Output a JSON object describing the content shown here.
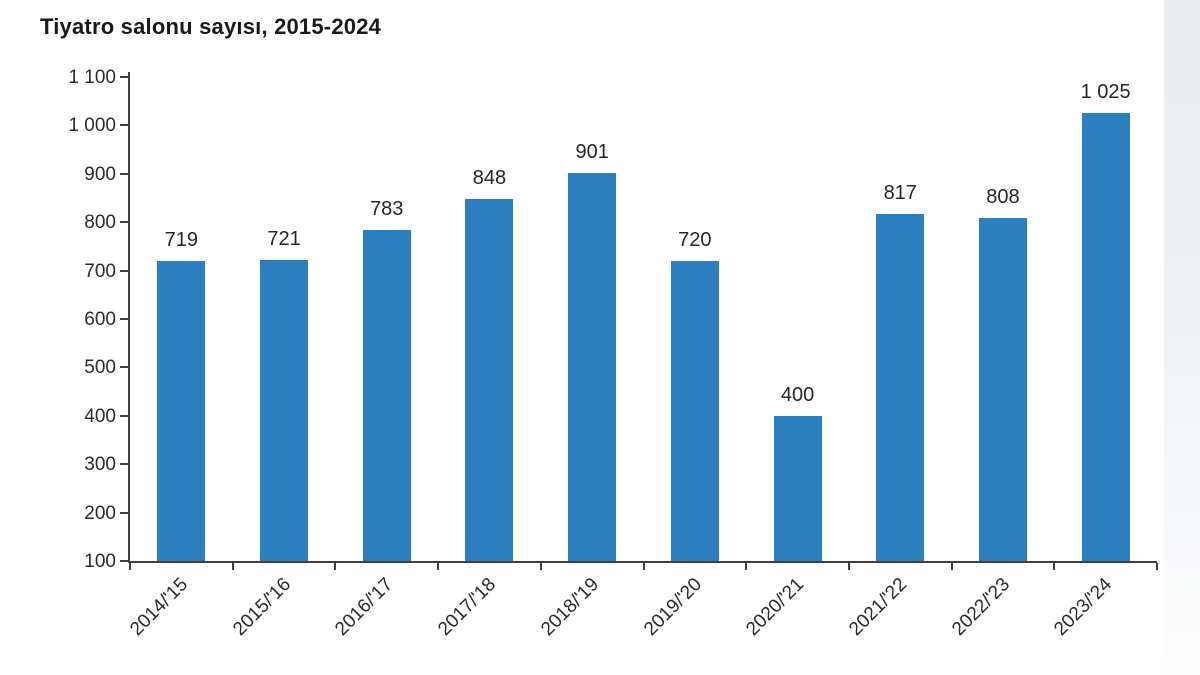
{
  "chart_data": {
    "type": "bar",
    "title": "Tiyatro salonu sayısı, 2015-2024",
    "categories": [
      "2014/'15",
      "2015/'16",
      "2016/'17",
      "2017/'18",
      "2018/'19",
      "2019/'20",
      "2020/'21",
      "2021/'22",
      "2022/'23",
      "2023/'24"
    ],
    "values": [
      719,
      721,
      783,
      848,
      901,
      720,
      400,
      817,
      808,
      1025
    ],
    "value_labels": [
      "719",
      "721",
      "783",
      "848",
      "901",
      "720",
      "400",
      "817",
      "808",
      "1 025"
    ],
    "xlabel": "",
    "ylabel": "",
    "ylim": [
      100,
      1100
    ],
    "ytick_step": 100,
    "ytick_labels": [
      "100",
      "200",
      "300",
      "400",
      "500",
      "600",
      "700",
      "800",
      "900",
      "1 000",
      "1 100"
    ],
    "grid": false,
    "legend": false,
    "bar_color": "#2d80c0",
    "axis_color": "#3f3f3f",
    "label_color": "#2b2b2b"
  }
}
